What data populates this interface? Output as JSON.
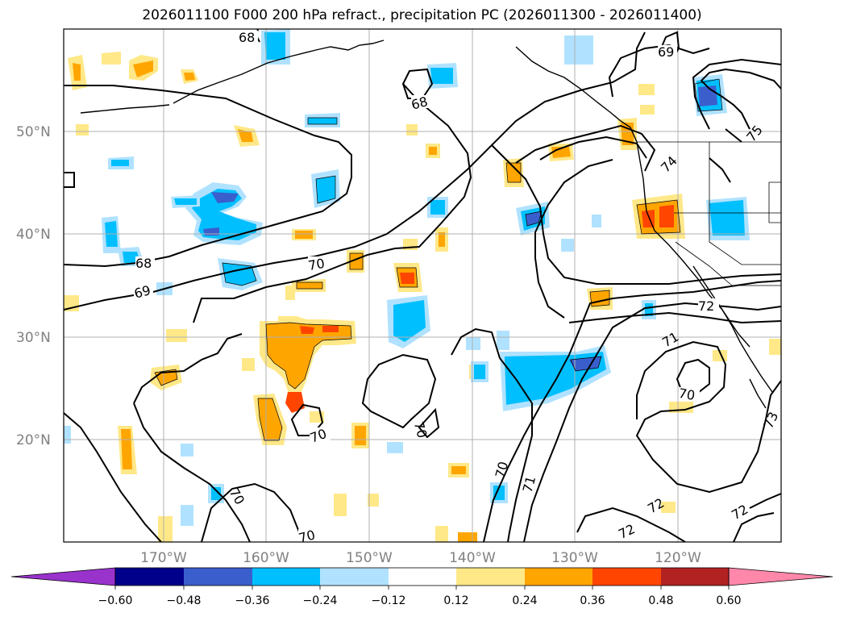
{
  "title": "2026011100 F000 200 hPa refract., precipitation PC (2026011300 - 2026011400)",
  "latitude_labels": [
    "50°N",
    "40°N",
    "30°N",
    "20°N"
  ],
  "longitude_labels": [
    "170°W",
    "160°W",
    "150°W",
    "140°W",
    "130°W",
    "120°W"
  ],
  "contour_labels": [
    "68",
    "68",
    "69",
    "69",
    "70",
    "70",
    "70",
    "70",
    "70",
    "70",
    "71",
    "71",
    "72",
    "72",
    "72",
    "72",
    "73",
    "74",
    "75"
  ],
  "colorbar": {
    "ticks": [
      "−0.60",
      "−0.48",
      "−0.36",
      "−0.24",
      "−0.12",
      "0.12",
      "0.24",
      "0.36",
      "0.48",
      "0.60"
    ],
    "colors": [
      "#9933cc",
      "#00008b",
      "#3a5fcd",
      "#00bfff",
      "#b0e2ff",
      "#ffffff",
      "#ffe888",
      "#ffa500",
      "#ff4500",
      "#b22222",
      "#ff88aa"
    ]
  },
  "shading_colors": {
    "negative_light": "#b0e2ff",
    "negative_mid": "#00bfff",
    "negative_strong": "#3a5fcd",
    "positive_light": "#ffe888",
    "positive_mid": "#ffa500",
    "positive_strong": "#ff4500"
  }
}
